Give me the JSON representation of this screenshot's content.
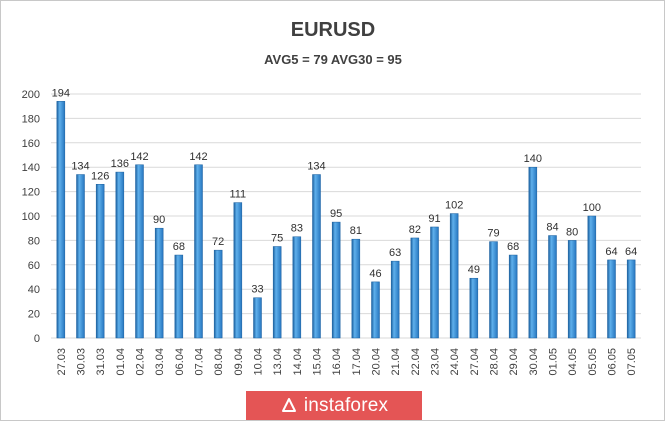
{
  "chart_data": {
    "type": "bar",
    "title": "EURUSD",
    "subtitle": "AVG5 = 79 AVG30 = 95",
    "xlabel": "",
    "ylabel": "",
    "ylim": [
      0,
      200
    ],
    "yticks": [
      0,
      20,
      40,
      60,
      80,
      100,
      120,
      140,
      160,
      180,
      200
    ],
    "grid": true,
    "legend": "none",
    "categories": [
      "27.03",
      "30.03",
      "31.03",
      "01.04",
      "02.04",
      "03.04",
      "06.04",
      "07.04",
      "08.04",
      "09.04",
      "10.04",
      "13.04",
      "14.04",
      "15.04",
      "16.04",
      "17.04",
      "20.04",
      "21.04",
      "22.04",
      "23.04",
      "24.04",
      "27.04",
      "28.04",
      "29.04",
      "30.04",
      "01.05",
      "04.05",
      "05.05",
      "06.05",
      "07.05"
    ],
    "values": [
      194,
      134,
      126,
      136,
      142,
      90,
      68,
      142,
      72,
      111,
      33,
      75,
      83,
      134,
      95,
      81,
      46,
      63,
      82,
      91,
      102,
      49,
      79,
      68,
      140,
      84,
      80,
      100,
      64,
      64
    ],
    "colors": {
      "bar": "#2e86d0",
      "bar_light": "#5fb0ec",
      "bar_dark": "#1a5f9e",
      "grid": "#d9d9d9",
      "axis_text": "#404040"
    }
  },
  "brand": {
    "name": "instaforex",
    "color": "#e45555"
  }
}
